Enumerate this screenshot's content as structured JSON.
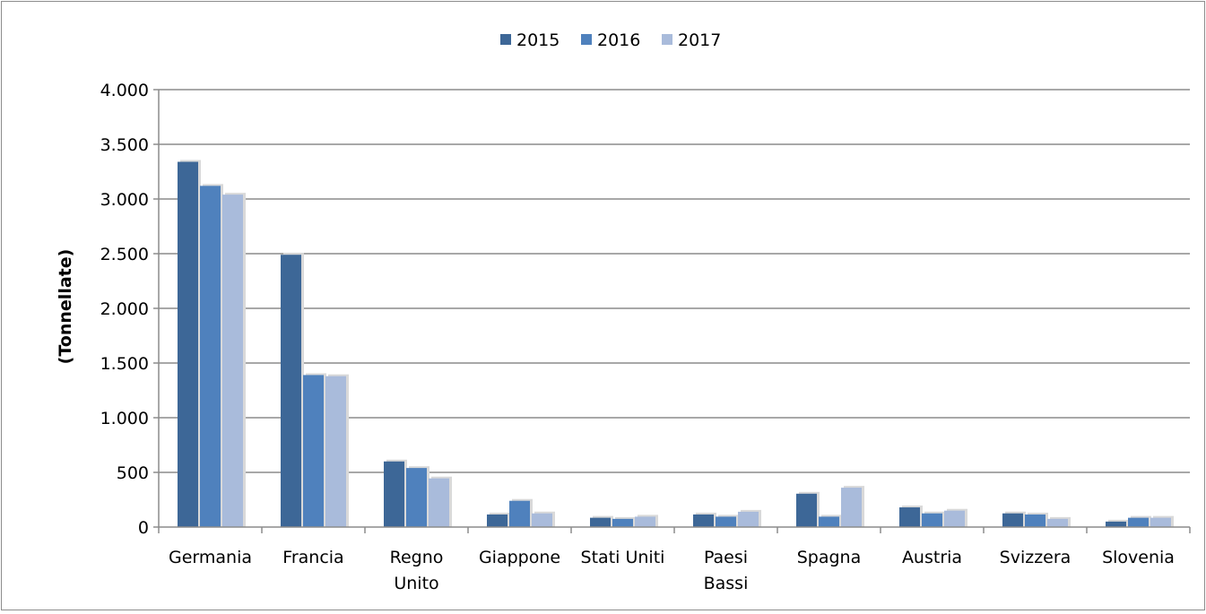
{
  "chart_data": {
    "type": "bar",
    "title": "",
    "xlabel": "",
    "ylabel": "(Tonnellate)",
    "ylim": [
      0,
      4000
    ],
    "yticks": [
      {
        "value": 0,
        "label": "0"
      },
      {
        "value": 500,
        "label": "500"
      },
      {
        "value": 1000,
        "label": "1.000"
      },
      {
        "value": 1500,
        "label": "1.500"
      },
      {
        "value": 2000,
        "label": "2.000"
      },
      {
        "value": 2500,
        "label": "2.500"
      },
      {
        "value": 3000,
        "label": "3.000"
      },
      {
        "value": 3500,
        "label": "3.500"
      },
      {
        "value": 4000,
        "label": "4.000"
      }
    ],
    "grid": true,
    "legend_position": "top",
    "categories": [
      [
        "Germania"
      ],
      [
        "Francia"
      ],
      [
        "Regno",
        "Unito"
      ],
      [
        "Giappone"
      ],
      [
        "Stati Uniti"
      ],
      [
        "Paesi",
        "Bassi"
      ],
      [
        "Spagna"
      ],
      [
        "Austria"
      ],
      [
        "Svizzera"
      ],
      [
        "Slovenia"
      ]
    ],
    "series": [
      {
        "name": "2015",
        "color": "#3d6797",
        "values": [
          3340,
          2490,
          600,
          115,
          85,
          115,
          305,
          180,
          125,
          50
        ]
      },
      {
        "name": "2016",
        "color": "#4f81bd",
        "values": [
          3120,
          1390,
          540,
          240,
          75,
          95,
          95,
          125,
          115,
          85
        ]
      },
      {
        "name": "2017",
        "color": "#a9bbdb",
        "values": [
          3040,
          1380,
          445,
          125,
          95,
          140,
          360,
          150,
          75,
          85
        ]
      }
    ]
  }
}
